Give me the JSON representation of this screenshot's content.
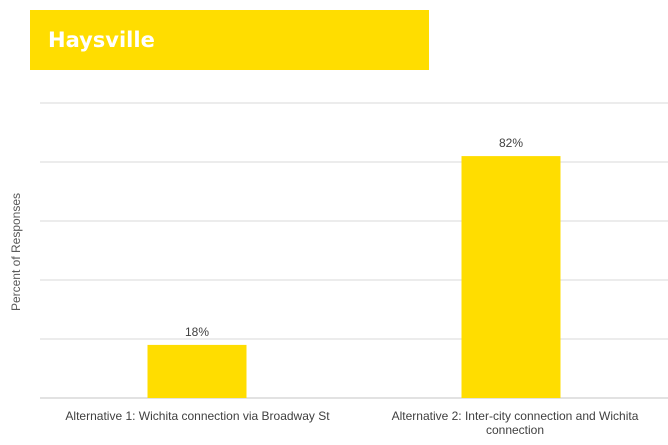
{
  "colors": {
    "accent": "#FFDD00",
    "grid": "#D9D9D9",
    "text": "#404040"
  },
  "chart_data": {
    "type": "bar",
    "title": "Haysville",
    "ylabel": "Percent of Responses",
    "xlabel": "",
    "categories": [
      "Alternative 1: Wichita connection via Broadway St",
      "Alternative 2: Inter-city connection and Wichita connection"
    ],
    "values": [
      18,
      82
    ],
    "value_labels": [
      "18%",
      "82%"
    ],
    "ylim": [
      0,
      100
    ],
    "grid": true,
    "legend": "none"
  }
}
